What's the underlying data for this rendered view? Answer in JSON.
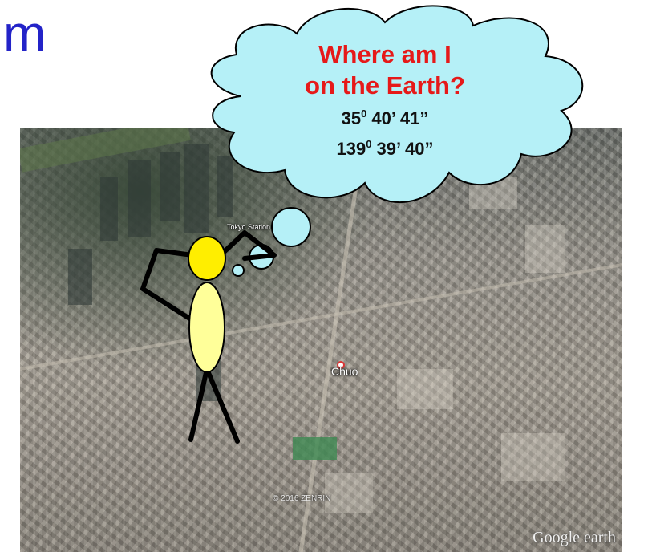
{
  "slide": {
    "title_fragment": "m"
  },
  "photo": {
    "place_label": "Chuo",
    "station_label": "Tokyo Station",
    "copyright": "© 2016 ZENRIN",
    "brand": "Google earth"
  },
  "thought_bubble": {
    "question_line1": "Where am I",
    "question_line2": "on the Earth?",
    "latitude": {
      "deg": "35",
      "sup": "0",
      "rest": " 40’ 41”"
    },
    "longitude": {
      "deg": "139",
      "sup": "0",
      "rest": " 39’ 40”"
    }
  },
  "colors": {
    "title": "#2323c8",
    "question": "#e61919",
    "cloud_fill": "#b5f0f7",
    "head": "#ffee00",
    "body": "#ffff99"
  }
}
